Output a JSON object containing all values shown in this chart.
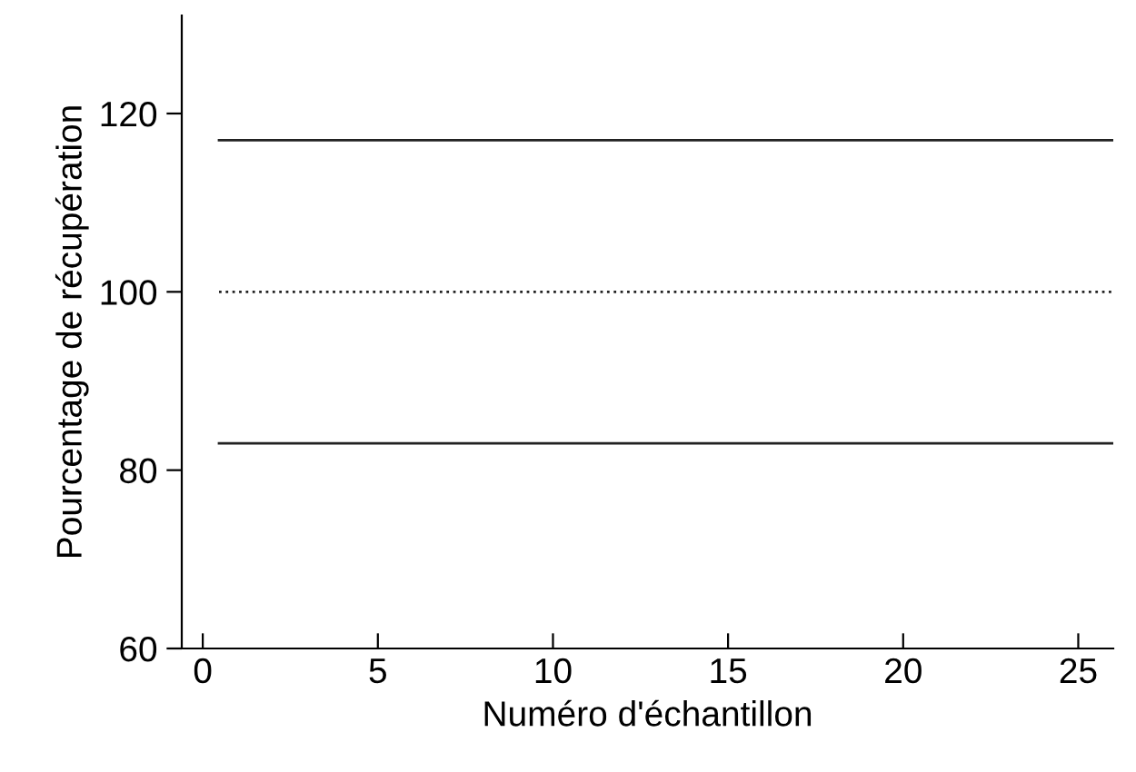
{
  "chart_data": {
    "type": "line",
    "xlabel": "Numéro d'échantillon",
    "ylabel": "Pourcentage de récupération",
    "xlim": [
      -0.6,
      26
    ],
    "ylim": [
      60,
      131
    ],
    "xticks": [
      0,
      5,
      10,
      15,
      20,
      25
    ],
    "yticks": [
      60,
      80,
      100,
      120
    ],
    "ref_lines": [
      {
        "axis": "y",
        "value": 117,
        "color": "#222222",
        "line_style": "solid"
      },
      {
        "axis": "y",
        "value": 100,
        "color": "#222222",
        "line_style": "dotted"
      },
      {
        "axis": "y",
        "value": 83,
        "color": "#222222",
        "line_style": "solid"
      }
    ],
    "grid": false,
    "legend": false
  }
}
